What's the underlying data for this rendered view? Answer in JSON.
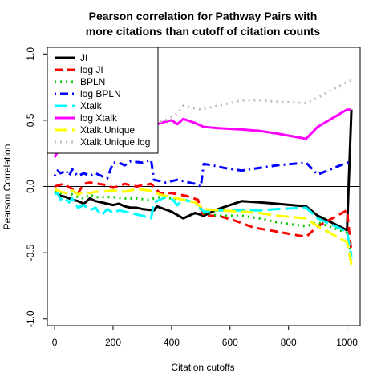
{
  "chart_data": {
    "type": "line",
    "title_lines": [
      "Pearson correlation for Pathway Pairs with",
      "more citations than cutoff of citation counts"
    ],
    "xlabel": "Citation cutoffs",
    "ylabel": "Pearson Correlation",
    "xlim": [
      -25,
      1045
    ],
    "ylim": [
      -1.05,
      1.05
    ],
    "xticks": [
      0,
      200,
      400,
      600,
      800,
      1000
    ],
    "yticks": [
      -1.0,
      -0.5,
      0.0,
      0.5,
      1.0
    ],
    "xtick_labels": [
      "0",
      "200",
      "400",
      "600",
      "800",
      "1000"
    ],
    "ytick_labels": [
      "-1.0",
      "-0.5",
      "0.0",
      "0.5",
      "1.0"
    ],
    "reference_line_y": 0,
    "legend_position": "top-left",
    "series": [
      {
        "name": "JI",
        "color": "#000000",
        "dash": "solid",
        "points": [
          [
            0,
            -0.04
          ],
          [
            20,
            -0.07
          ],
          [
            40,
            -0.08
          ],
          [
            60,
            -0.1
          ],
          [
            80,
            -0.11
          ],
          [
            100,
            -0.13
          ],
          [
            120,
            -0.09
          ],
          [
            140,
            -0.11
          ],
          [
            160,
            -0.12
          ],
          [
            180,
            -0.13
          ],
          [
            200,
            -0.14
          ],
          [
            220,
            -0.13
          ],
          [
            240,
            -0.15
          ],
          [
            260,
            -0.16
          ],
          [
            280,
            -0.16
          ],
          [
            300,
            -0.17
          ],
          [
            340,
            -0.18
          ],
          [
            350,
            -0.15
          ],
          [
            400,
            -0.19
          ],
          [
            440,
            -0.24
          ],
          [
            480,
            -0.2
          ],
          [
            510,
            -0.22
          ],
          [
            560,
            -0.17
          ],
          [
            640,
            -0.11
          ],
          [
            700,
            -0.12
          ],
          [
            760,
            -0.13
          ],
          [
            860,
            -0.15
          ],
          [
            900,
            -0.22
          ],
          [
            1000,
            -0.33
          ],
          [
            1015,
            0.58
          ]
        ]
      },
      {
        "name": "log JI",
        "color": "#ff0000",
        "dash": "dashed",
        "points": [
          [
            0,
            0.0
          ],
          [
            30,
            0.02
          ],
          [
            60,
            -0.02
          ],
          [
            80,
            -0.05
          ],
          [
            100,
            0.02
          ],
          [
            120,
            0.03
          ],
          [
            150,
            0.02
          ],
          [
            180,
            0.01
          ],
          [
            200,
            -0.01
          ],
          [
            240,
            0.02
          ],
          [
            280,
            0.0
          ],
          [
            330,
            0.02
          ],
          [
            360,
            -0.05
          ],
          [
            400,
            -0.05
          ],
          [
            450,
            -0.07
          ],
          [
            490,
            -0.1
          ],
          [
            510,
            -0.22
          ],
          [
            560,
            -0.22
          ],
          [
            620,
            -0.26
          ],
          [
            680,
            -0.31
          ],
          [
            760,
            -0.34
          ],
          [
            860,
            -0.38
          ],
          [
            900,
            -0.3
          ],
          [
            1000,
            -0.18
          ],
          [
            1015,
            -0.5
          ]
        ]
      },
      {
        "name": "BPLN",
        "color": "#00cd00",
        "dash": "dotted",
        "points": [
          [
            0,
            -0.04
          ],
          [
            20,
            -0.05
          ],
          [
            40,
            -0.05
          ],
          [
            60,
            -0.06
          ],
          [
            80,
            -0.08
          ],
          [
            100,
            -0.09
          ],
          [
            120,
            -0.06
          ],
          [
            140,
            -0.08
          ],
          [
            160,
            -0.08
          ],
          [
            200,
            -0.08
          ],
          [
            240,
            -0.09
          ],
          [
            280,
            -0.09
          ],
          [
            320,
            -0.1
          ],
          [
            360,
            -0.08
          ],
          [
            400,
            -0.09
          ],
          [
            440,
            -0.1
          ],
          [
            480,
            -0.12
          ],
          [
            510,
            -0.2
          ],
          [
            560,
            -0.22
          ],
          [
            640,
            -0.22
          ],
          [
            700,
            -0.24
          ],
          [
            760,
            -0.27
          ],
          [
            860,
            -0.3
          ],
          [
            900,
            -0.27
          ],
          [
            1000,
            -0.35
          ],
          [
            1015,
            -0.55
          ]
        ]
      },
      {
        "name": "log BPLN",
        "color": "#0000ff",
        "dash": "dotdash",
        "points": [
          [
            0,
            0.08
          ],
          [
            10,
            0.12
          ],
          [
            20,
            0.1
          ],
          [
            40,
            0.12
          ],
          [
            50,
            0.08
          ],
          [
            60,
            0.13
          ],
          [
            70,
            0.1
          ],
          [
            80,
            0.08
          ],
          [
            100,
            0.1
          ],
          [
            120,
            0.08
          ],
          [
            140,
            0.1
          ],
          [
            160,
            0.08
          ],
          [
            180,
            0.06
          ],
          [
            200,
            0.18
          ],
          [
            220,
            0.18
          ],
          [
            240,
            0.16
          ],
          [
            260,
            0.19
          ],
          [
            300,
            0.18
          ],
          [
            330,
            0.2
          ],
          [
            340,
            0.05
          ],
          [
            380,
            0.03
          ],
          [
            420,
            0.05
          ],
          [
            480,
            0.02
          ],
          [
            500,
            0.0
          ],
          [
            510,
            0.17
          ],
          [
            540,
            0.16
          ],
          [
            580,
            0.14
          ],
          [
            640,
            0.12
          ],
          [
            700,
            0.14
          ],
          [
            760,
            0.16
          ],
          [
            860,
            0.18
          ],
          [
            900,
            0.09
          ],
          [
            1000,
            0.18
          ],
          [
            1015,
            0.19
          ]
        ]
      },
      {
        "name": "Xtalk",
        "color": "#00ffff",
        "dash": "longdash",
        "points": [
          [
            0,
            -0.06
          ],
          [
            10,
            -0.05
          ],
          [
            20,
            -0.1
          ],
          [
            30,
            -0.08
          ],
          [
            40,
            -0.1
          ],
          [
            50,
            -0.12
          ],
          [
            60,
            -0.09
          ],
          [
            80,
            -0.16
          ],
          [
            100,
            -0.14
          ],
          [
            120,
            -0.18
          ],
          [
            140,
            -0.16
          ],
          [
            160,
            -0.22
          ],
          [
            180,
            -0.17
          ],
          [
            200,
            -0.2
          ],
          [
            220,
            -0.18
          ],
          [
            260,
            -0.2
          ],
          [
            300,
            -0.22
          ],
          [
            330,
            -0.24
          ],
          [
            340,
            -0.12
          ],
          [
            380,
            -0.08
          ],
          [
            400,
            -0.09
          ],
          [
            420,
            -0.14
          ],
          [
            440,
            -0.1
          ],
          [
            480,
            -0.12
          ],
          [
            510,
            -0.19
          ],
          [
            560,
            -0.18
          ],
          [
            640,
            -0.18
          ],
          [
            700,
            -0.18
          ],
          [
            760,
            -0.17
          ],
          [
            860,
            -0.16
          ],
          [
            900,
            -0.24
          ],
          [
            1000,
            -0.34
          ],
          [
            1015,
            -0.53
          ]
        ]
      },
      {
        "name": "log Xtalk",
        "color": "#ff00ff",
        "dash": "solid",
        "points": [
          [
            0,
            0.22
          ],
          [
            10,
            0.26
          ],
          [
            20,
            0.3
          ],
          [
            30,
            0.27
          ],
          [
            40,
            0.28
          ],
          [
            60,
            0.31
          ],
          [
            80,
            0.3
          ],
          [
            100,
            0.32
          ],
          [
            140,
            0.35
          ],
          [
            200,
            0.4
          ],
          [
            260,
            0.44
          ],
          [
            300,
            0.46
          ],
          [
            330,
            0.48
          ],
          [
            340,
            0.5
          ],
          [
            350,
            0.47
          ],
          [
            380,
            0.49
          ],
          [
            400,
            0.5
          ],
          [
            420,
            0.47
          ],
          [
            440,
            0.51
          ],
          [
            480,
            0.48
          ],
          [
            510,
            0.45
          ],
          [
            560,
            0.44
          ],
          [
            640,
            0.43
          ],
          [
            700,
            0.42
          ],
          [
            760,
            0.4
          ],
          [
            860,
            0.36
          ],
          [
            900,
            0.45
          ],
          [
            1000,
            0.58
          ],
          [
            1015,
            0.58
          ]
        ]
      },
      {
        "name": "Xtalk.Unique",
        "color": "#ffff00",
        "dash": "longdash",
        "points": [
          [
            0,
            -0.02
          ],
          [
            20,
            -0.04
          ],
          [
            40,
            -0.05
          ],
          [
            60,
            -0.03
          ],
          [
            80,
            -0.06
          ],
          [
            100,
            -0.04
          ],
          [
            120,
            -0.05
          ],
          [
            140,
            -0.04
          ],
          [
            160,
            -0.04
          ],
          [
            200,
            -0.03
          ],
          [
            240,
            -0.04
          ],
          [
            280,
            -0.02
          ],
          [
            320,
            -0.03
          ],
          [
            340,
            -0.04
          ],
          [
            360,
            -0.06
          ],
          [
            400,
            -0.08
          ],
          [
            440,
            -0.1
          ],
          [
            480,
            -0.12
          ],
          [
            510,
            -0.17
          ],
          [
            560,
            -0.18
          ],
          [
            640,
            -0.19
          ],
          [
            700,
            -0.2
          ],
          [
            760,
            -0.22
          ],
          [
            860,
            -0.24
          ],
          [
            900,
            -0.3
          ],
          [
            1000,
            -0.42
          ],
          [
            1015,
            -0.59
          ]
        ]
      },
      {
        "name": "Xtalk.Unique.log",
        "color": "#bebebe",
        "dash": "dotted",
        "points": [
          [
            0,
            0.28
          ],
          [
            20,
            0.32
          ],
          [
            40,
            0.34
          ],
          [
            60,
            0.35
          ],
          [
            80,
            0.33
          ],
          [
            100,
            0.36
          ],
          [
            140,
            0.39
          ],
          [
            200,
            0.42
          ],
          [
            260,
            0.44
          ],
          [
            300,
            0.47
          ],
          [
            340,
            0.48
          ],
          [
            380,
            0.5
          ],
          [
            420,
            0.55
          ],
          [
            440,
            0.61
          ],
          [
            480,
            0.59
          ],
          [
            500,
            0.58
          ],
          [
            560,
            0.61
          ],
          [
            640,
            0.65
          ],
          [
            700,
            0.65
          ],
          [
            760,
            0.64
          ],
          [
            860,
            0.63
          ],
          [
            900,
            0.67
          ],
          [
            1000,
            0.79
          ],
          [
            1015,
            0.8
          ]
        ]
      }
    ]
  }
}
